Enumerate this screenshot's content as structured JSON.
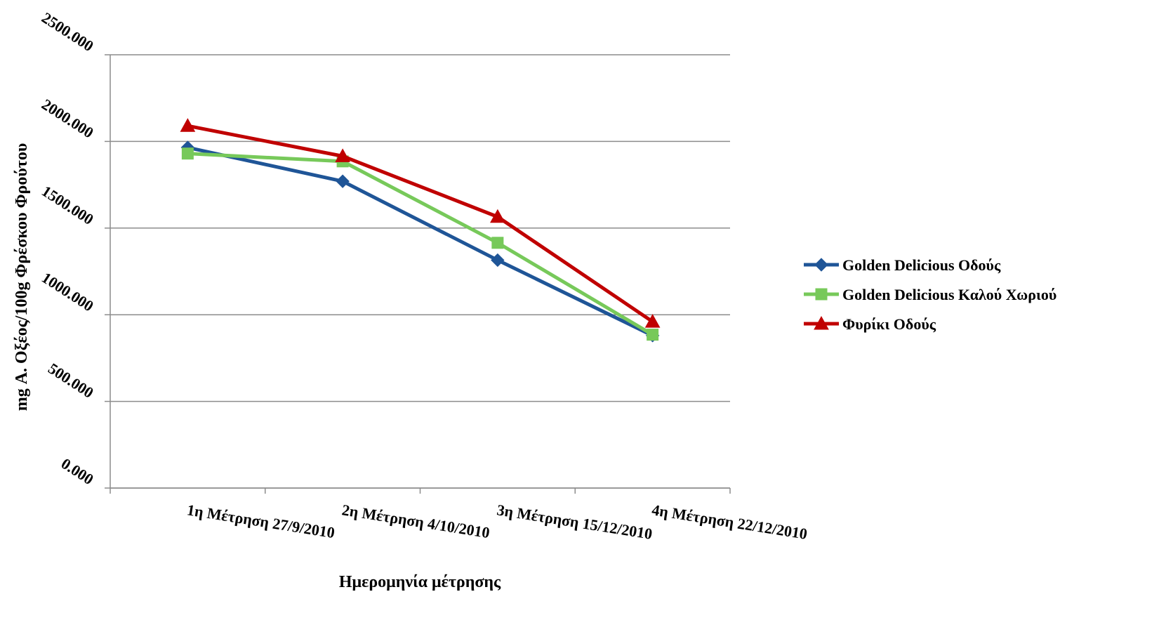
{
  "chart_data": {
    "type": "line",
    "title": "",
    "xlabel": "Ημερομηνία μέτρησης",
    "ylabel": "mg Α. Οξέος/100g Φρέσκου Φρούτου",
    "categories": [
      "1η Μέτρηση 27/9/2010",
      "2η Μέτρηση 4/10/2010",
      "3η Μέτρηση 15/12/2010",
      "4η Μέτρηση 22/12/2010"
    ],
    "ylim": [
      0,
      2500
    ],
    "yticks": [
      0,
      500,
      1000,
      1500,
      2000,
      2500
    ],
    "ytick_labels": [
      "0.000",
      "500.000",
      "1000.000",
      "1500.000",
      "2000.000",
      "2500.000"
    ],
    "grid": "horizontal",
    "legend_position": "right",
    "series": [
      {
        "name": "Golden Delicious Οδούς",
        "values": [
          1965,
          1770,
          1315,
          880
        ],
        "color": "#1f5597",
        "marker": "diamond"
      },
      {
        "name": "Golden Delicious Καλού Χωριού",
        "values": [
          1930,
          1885,
          1415,
          885
        ],
        "color": "#77c95a",
        "marker": "square"
      },
      {
        "name": "Φυρίκι Οδούς",
        "values": [
          2090,
          1915,
          1565,
          960
        ],
        "color": "#c00000",
        "marker": "triangle"
      }
    ]
  }
}
